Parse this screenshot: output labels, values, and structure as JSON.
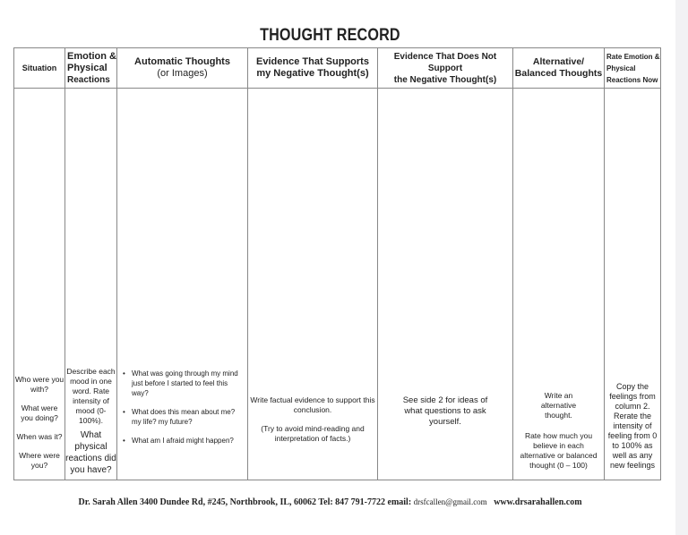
{
  "title": "THOUGHT RECORD",
  "headers": [
    "Situation",
    "Emotion &",
    "Physical",
    "Reactions",
    "Automatic Thoughts",
    "(or Images)",
    "Evidence That Supports",
    "my Negative Thought(s)",
    "Evidence That Does Not Support",
    "the Negative Thought(s)",
    "Alternative/",
    "Balanced Thoughts",
    "Rate Emotion &",
    "Physical",
    "Reactions Now"
  ],
  "prompts": {
    "situation": [
      "Who were you with?",
      "What were you doing?",
      "When was it?",
      "Where were you?"
    ],
    "emotion": [
      "Describe each mood in one word. Rate intensity of mood (0-100%).",
      "What physical reactions did you have?"
    ],
    "automatic": [
      "What was going through my mind just before I started to feel this way?",
      "What does this mean about me? my life? my future?",
      "What am I afraid might happen?"
    ],
    "supports": [
      "Write factual evidence to support this conclusion.",
      "(Try to avoid mind-reading and interpretation of facts.)"
    ],
    "notsupport": "See side 2 for ideas of what questions to ask yourself.",
    "alternative": [
      "Write an alternative thought.",
      "Rate how much you believe in each alternative or balanced thought (0 – 100)"
    ],
    "rate_now": "Copy the feelings from column 2. Rerate the intensity of feeling from 0 to 100% as well as any new feelings"
  },
  "footer": {
    "main": "Dr. Sarah Allen  3400 Dundee Rd, #245, Northbrook, IL, 60062     Tel: 847 791-7722    email:",
    "email": "drsfcallen@gmail.com",
    "web": "www.drsarahallen.com"
  }
}
